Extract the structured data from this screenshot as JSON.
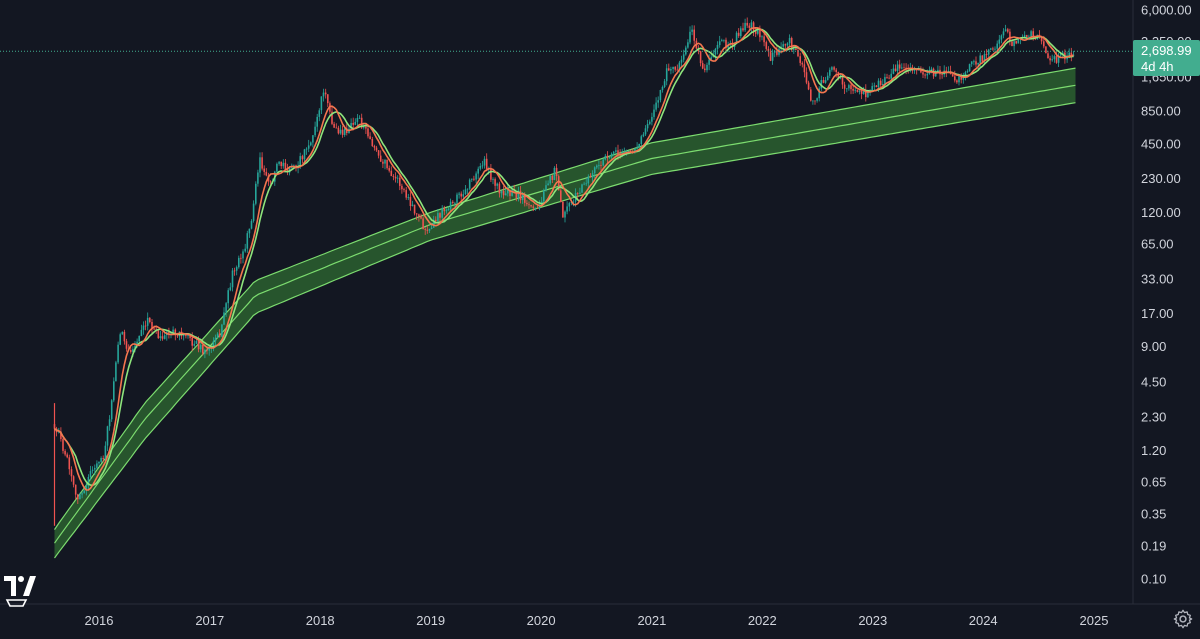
{
  "chart_data": {
    "type": "candlestick",
    "title": "",
    "y_scale": "log",
    "ylim": [
      0.07,
      8000
    ],
    "xlim": [
      "2015-07-15",
      "2025-04-30"
    ],
    "x_tick_labels": [
      "2016",
      "2017",
      "2018",
      "2019",
      "2020",
      "2021",
      "2022",
      "2023",
      "2024",
      "2025"
    ],
    "y_tick_labels": [
      "6,000.00",
      "3,250.00",
      "1,650.00",
      "850.00",
      "450.00",
      "230.00",
      "120.00",
      "65.00",
      "33.00",
      "17.00",
      "9.00",
      "4.50",
      "2.30",
      "1.20",
      "0.65",
      "0.35",
      "0.19",
      "0.10"
    ],
    "last_price": 2698.99,
    "last_price_label": "2,698.99",
    "countdown_label": "4d 4h",
    "colors": {
      "background": "#131722",
      "candle_up": "#26a69a",
      "candle_down": "#ef5350",
      "ma_fast": "#f5764f",
      "ma_slow": "#8ee57c",
      "band_fill": "#2f6b31",
      "band_line": "#7cdc6f",
      "price_tag": "#42ad8f",
      "text": "#d1d4dc"
    },
    "price_keypoints": [
      [
        "2015-08-07",
        2.0
      ],
      [
        "2015-09-15",
        1.1
      ],
      [
        "2015-10-25",
        0.45
      ],
      [
        "2015-12-15",
        0.9
      ],
      [
        "2016-01-15",
        1.0
      ],
      [
        "2016-02-15",
        3.5
      ],
      [
        "2016-03-10",
        12.0
      ],
      [
        "2016-04-15",
        8.0
      ],
      [
        "2016-06-15",
        15.0
      ],
      [
        "2016-07-15",
        11.0
      ],
      [
        "2016-09-15",
        12.0
      ],
      [
        "2016-11-15",
        9.5
      ],
      [
        "2016-12-20",
        8.0
      ],
      [
        "2017-02-01",
        11.0
      ],
      [
        "2017-03-15",
        35.0
      ],
      [
        "2017-04-15",
        50.0
      ],
      [
        "2017-05-15",
        90.0
      ],
      [
        "2017-06-15",
        330.0
      ],
      [
        "2017-07-15",
        200.0
      ],
      [
        "2017-08-15",
        300.0
      ],
      [
        "2017-09-15",
        280.0
      ],
      [
        "2017-10-20",
        310.0
      ],
      [
        "2017-12-01",
        450.0
      ],
      [
        "2018-01-12",
        1300.0
      ],
      [
        "2018-02-10",
        650.0
      ],
      [
        "2018-03-15",
        550.0
      ],
      [
        "2018-05-05",
        750.0
      ],
      [
        "2018-06-20",
        450.0
      ],
      [
        "2018-08-15",
        280.0
      ],
      [
        "2018-09-15",
        220.0
      ],
      [
        "2018-11-15",
        120.0
      ],
      [
        "2018-12-15",
        85.0
      ],
      [
        "2019-02-15",
        130.0
      ],
      [
        "2019-04-15",
        170.0
      ],
      [
        "2019-06-25",
        320.0
      ],
      [
        "2019-08-15",
        180.0
      ],
      [
        "2019-10-15",
        170.0
      ],
      [
        "2019-12-20",
        130.0
      ],
      [
        "2020-02-15",
        270.0
      ],
      [
        "2020-03-13",
        110.0
      ],
      [
        "2020-05-15",
        200.0
      ],
      [
        "2020-07-15",
        320.0
      ],
      [
        "2020-09-15",
        380.0
      ],
      [
        "2020-11-01",
        390.0
      ],
      [
        "2021-01-01",
        730.0
      ],
      [
        "2021-02-20",
        1900.0
      ],
      [
        "2021-04-01",
        2000.0
      ],
      [
        "2021-05-12",
        4100.0
      ],
      [
        "2021-06-22",
        1850.0
      ],
      [
        "2021-08-15",
        3200.0
      ],
      [
        "2021-09-20",
        3000.0
      ],
      [
        "2021-11-10",
        4800.0
      ],
      [
        "2022-01-05",
        3500.0
      ],
      [
        "2022-01-24",
        2300.0
      ],
      [
        "2022-03-30",
        3300.0
      ],
      [
        "2022-05-15",
        2000.0
      ],
      [
        "2022-06-18",
        950.0
      ],
      [
        "2022-07-20",
        1550.0
      ],
      [
        "2022-08-15",
        1900.0
      ],
      [
        "2022-10-15",
        1300.0
      ],
      [
        "2022-12-15",
        1200.0
      ],
      [
        "2023-02-15",
        1650.0
      ],
      [
        "2023-04-15",
        2100.0
      ],
      [
        "2023-06-15",
        1750.0
      ],
      [
        "2023-08-15",
        1800.0
      ],
      [
        "2023-10-15",
        1580.0
      ],
      [
        "2023-12-10",
        2300.0
      ],
      [
        "2024-01-15",
        2500.0
      ],
      [
        "2024-03-12",
        4000.0
      ],
      [
        "2024-04-15",
        3000.0
      ],
      [
        "2024-05-27",
        3900.0
      ],
      [
        "2024-07-15",
        3300.0
      ],
      [
        "2024-08-05",
        2200.0
      ],
      [
        "2024-09-15",
        2400.0
      ],
      [
        "2024-10-15",
        2600.0
      ],
      [
        "2024-10-31",
        2698.99
      ]
    ],
    "band": {
      "description": "logarithmic regression band, value = exp(a + b*ln(days since 2009-01-03))",
      "upper_points": [
        [
          "2015-08-07",
          0.26
        ],
        [
          "2016-06-01",
          3.0
        ],
        [
          "2017-06-01",
          32.0
        ],
        [
          "2019-01-01",
          120.0
        ],
        [
          "2021-01-01",
          460.0
        ],
        [
          "2024-11-01",
          1950.0
        ]
      ],
      "middle_points": [
        [
          "2015-08-07",
          0.2
        ],
        [
          "2016-06-01",
          2.2
        ],
        [
          "2017-06-01",
          24.0
        ],
        [
          "2019-01-01",
          95.0
        ],
        [
          "2021-01-01",
          340.0
        ],
        [
          "2024-11-01",
          1400.0
        ]
      ],
      "lower_points": [
        [
          "2015-08-07",
          0.15
        ],
        [
          "2016-06-01",
          1.5
        ],
        [
          "2017-06-01",
          17.0
        ],
        [
          "2019-01-01",
          70.0
        ],
        [
          "2021-01-01",
          250.0
        ],
        [
          "2024-11-01",
          1000.0
        ]
      ]
    }
  },
  "ui": {
    "settings_icon": "gear-icon",
    "logo_icon": "tradingview-logo"
  }
}
